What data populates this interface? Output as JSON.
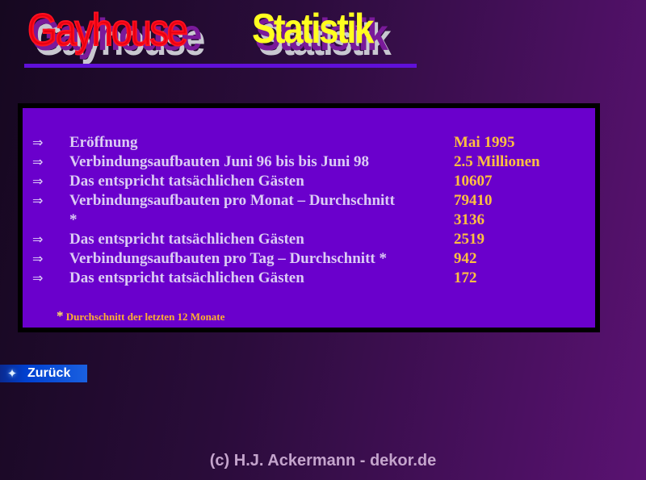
{
  "header": {
    "title_part1": "Gayhouse",
    "title_part2": "Statistik"
  },
  "stats": {
    "rows": [
      {
        "bullet": "⇒",
        "label": "Eröffnung",
        "value": "Mai 1995"
      },
      {
        "bullet": "⇒",
        "label": "Verbindungsaufbauten Juni 96 bis bis Juni 98",
        "value": "2.5 Millionen"
      },
      {
        "bullet": "⇒",
        "label": "Das entspricht tatsächlichen Gästen",
        "value": "10607"
      },
      {
        "bullet": "⇒",
        "label": "Verbindungsaufbauten pro Monat – Durchschnitt",
        "value": "79410"
      },
      {
        "bullet": "",
        "label": "*",
        "value": "3136"
      },
      {
        "bullet": "⇒",
        "label": "Das entspricht tatsächlichen Gästen",
        "value": "2519"
      },
      {
        "bullet": "⇒",
        "label": "Verbindungsaufbauten pro Tag – Durchschnitt *",
        "value": "942"
      },
      {
        "bullet": "⇒",
        "label": "Das entspricht tatsächlichen Gästen",
        "value": "172"
      }
    ],
    "footnote_marker": "*",
    "footnote": "Durchschnitt der letzten 12 Monate"
  },
  "nav": {
    "back_label": "Zurück",
    "back_icon": "star-icon"
  },
  "footer": {
    "copyright": "(c) H.J. Ackermann - dekor.de"
  },
  "colors": {
    "panel": "#6a00cc",
    "label": "#dcccf4",
    "value": "#ffc040",
    "title_red": "#e80010",
    "title_yellow": "#ffff20"
  }
}
